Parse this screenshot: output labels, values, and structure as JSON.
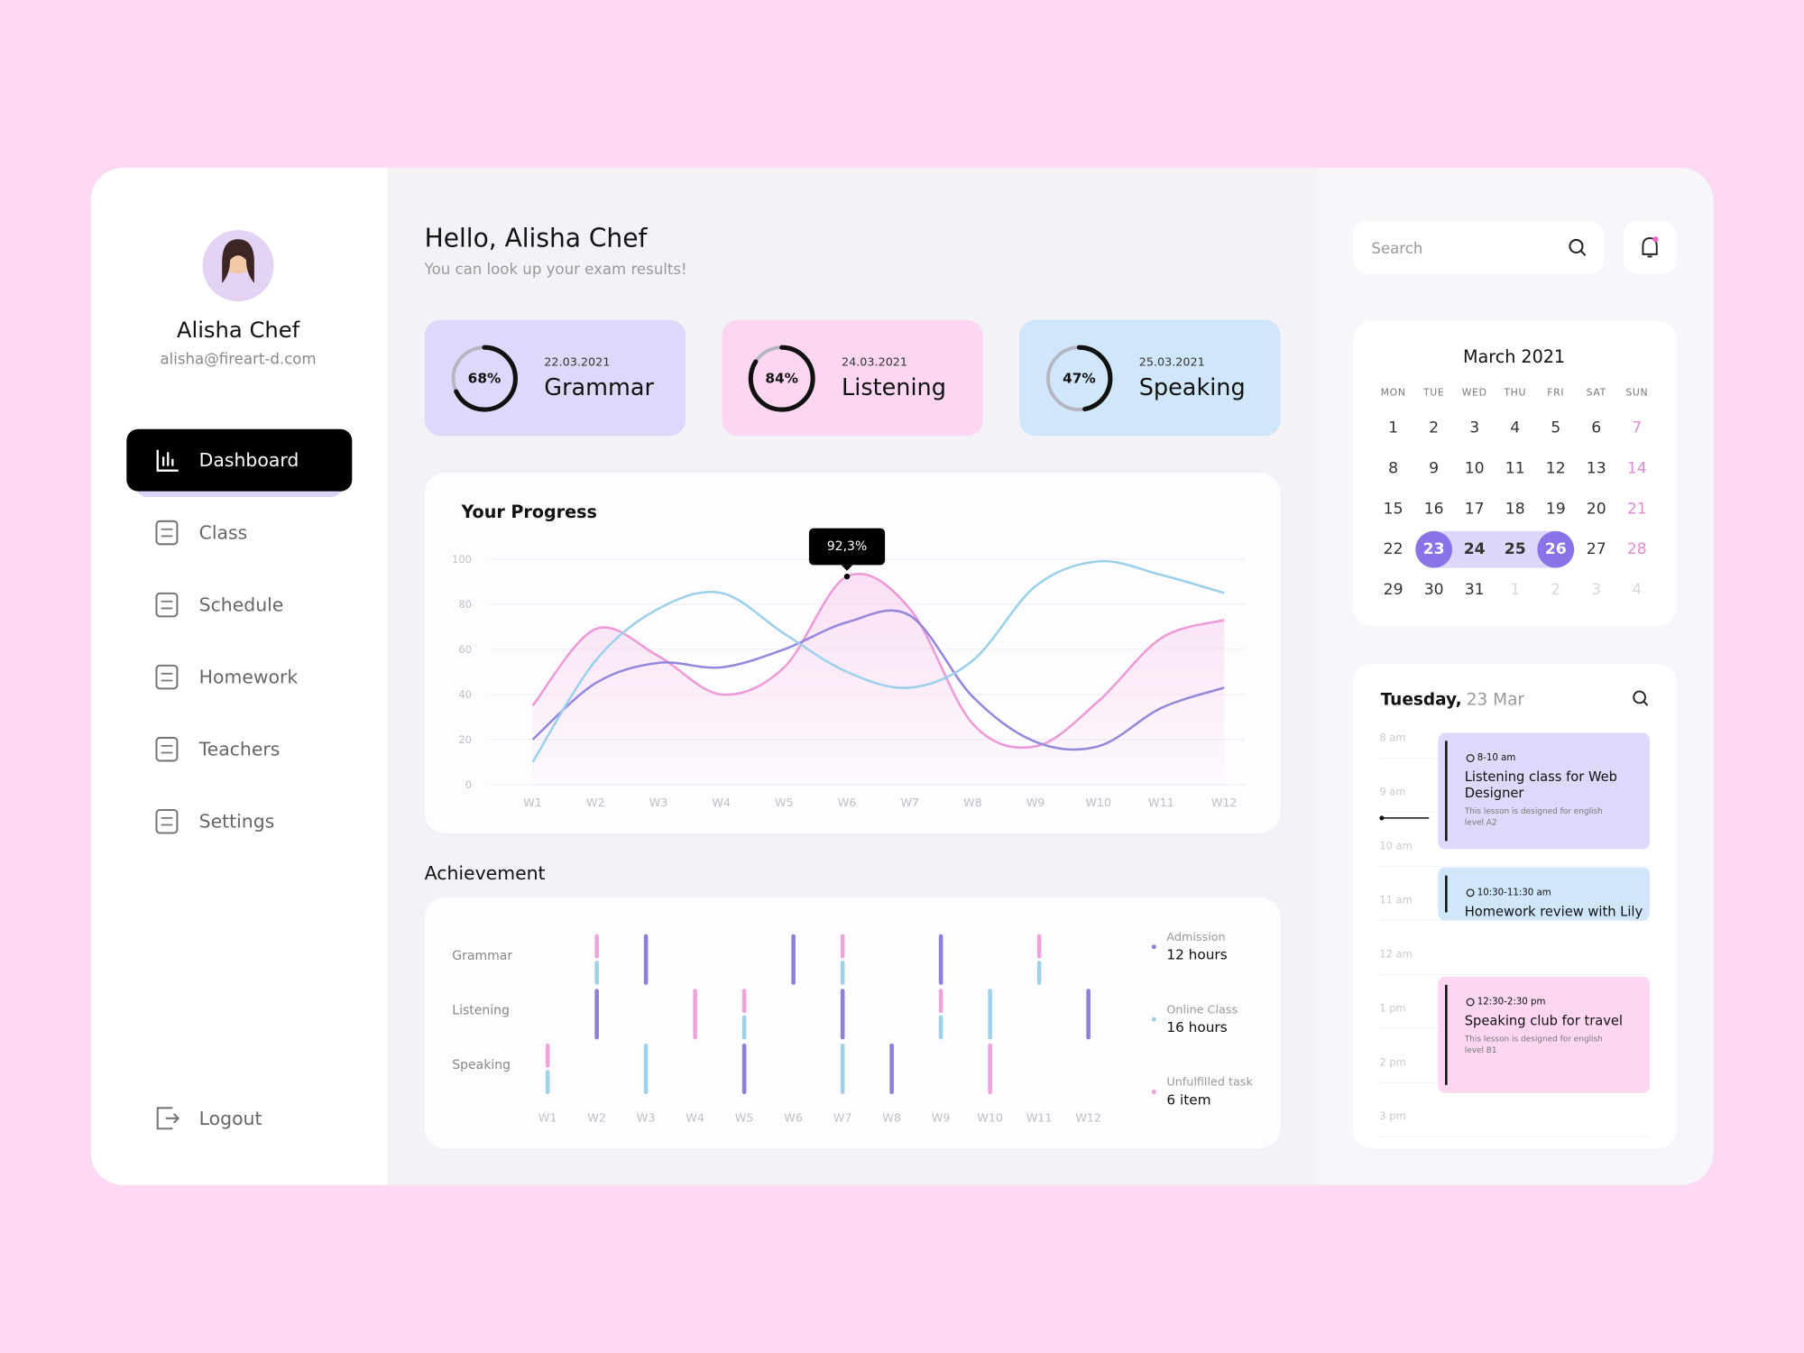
{
  "sidebar": {
    "name": "Alisha Chef",
    "email": "alisha@fireart-d.com",
    "nav": [
      "Dashboard",
      "Class",
      "Schedule",
      "Homework",
      "Teachers",
      "Settings"
    ],
    "logout": "Logout"
  },
  "header": {
    "title": "Hello, Alisha Chef",
    "subtitle": "You can look up your exam results!"
  },
  "exam_cards": [
    {
      "date": "22.03.2021",
      "title": "Grammar",
      "value": 68,
      "value_label": "68%",
      "color": "#dcd9fb"
    },
    {
      "date": "24.03.2021",
      "title": "Listening",
      "value": 84,
      "value_label": "84%",
      "color": "#fdd6f1"
    },
    {
      "date": "25.03.2021",
      "title": "Speaking",
      "value": 47,
      "value_label": "47%",
      "color": "#cfe6fb"
    }
  ],
  "chart_data": [
    {
      "type": "line",
      "title": "Your Progress",
      "categories": [
        "W1",
        "W2",
        "W3",
        "W4",
        "W5",
        "W6",
        "W7",
        "W8",
        "W9",
        "W10",
        "W11",
        "W12"
      ],
      "ylim": [
        0,
        100
      ],
      "yticks": [
        0,
        20,
        40,
        60,
        80,
        100
      ],
      "grid": true,
      "series": [
        {
          "color": "#ec9ad8",
          "values": [
            35,
            69,
            57,
            40,
            52,
            92.3,
            78,
            27,
            17,
            37,
            65,
            73
          ],
          "value_labels": [
            null,
            null,
            null,
            null,
            null,
            "92,3%",
            null,
            null,
            null,
            null,
            null,
            null
          ]
        },
        {
          "color": "#9488dc",
          "values": [
            20,
            45,
            54,
            52,
            60,
            72,
            75,
            39,
            19,
            17,
            34,
            43
          ]
        },
        {
          "color": "#9cd0ec",
          "values": [
            10,
            55,
            78,
            85,
            67,
            50,
            43,
            55,
            88,
            99,
            93,
            85
          ]
        }
      ]
    },
    {
      "type": "strip",
      "title": "Achievement",
      "categories": [
        "W1",
        "W2",
        "W3",
        "W4",
        "W5",
        "W6",
        "W7",
        "W8",
        "W9",
        "W10",
        "W11",
        "W12"
      ],
      "rows": [
        "Grammar",
        "Listening",
        "Speaking"
      ],
      "series": [
        {
          "name": "Admission",
          "value_label": "12 hours",
          "color": "#8d80d9",
          "values": [
            [
              null,
              null,
              1,
              null,
              null,
              1,
              null,
              null,
              1,
              null,
              null,
              null
            ],
            [
              null,
              1,
              null,
              null,
              null,
              null,
              1,
              null,
              null,
              null,
              null,
              1
            ],
            [
              null,
              null,
              null,
              null,
              1,
              null,
              null,
              1,
              null,
              null,
              null,
              null
            ]
          ]
        },
        {
          "name": "Online Class",
          "value_label": "16 hours",
          "color": "#9fd2ea",
          "values": [
            [
              null,
              0.5,
              null,
              null,
              null,
              null,
              0.5,
              null,
              null,
              null,
              0.5,
              null
            ],
            [
              null,
              null,
              null,
              null,
              0.5,
              null,
              null,
              null,
              0.5,
              1,
              null,
              null
            ],
            [
              0.5,
              null,
              1,
              null,
              null,
              null,
              1,
              null,
              null,
              null,
              null,
              null
            ]
          ]
        },
        {
          "name": "Unfulfilled task",
          "value_label": "6 item",
          "color": "#f0a2dc",
          "values": [
            [
              null,
              0.5,
              null,
              null,
              null,
              null,
              0.5,
              null,
              null,
              null,
              0.5,
              null
            ],
            [
              null,
              null,
              null,
              1,
              0.5,
              null,
              null,
              null,
              0.5,
              null,
              null,
              null
            ],
            [
              0.5,
              null,
              null,
              null,
              null,
              null,
              null,
              null,
              null,
              1,
              null,
              null
            ]
          ]
        }
      ]
    }
  ],
  "search": {
    "placeholder": "Search"
  },
  "calendar": {
    "title": "March 2021",
    "weekdays": [
      "MON",
      "TUE",
      "WED",
      "THU",
      "FRI",
      "SAT",
      "SUN"
    ],
    "weeks": [
      [
        1,
        2,
        3,
        4,
        5,
        6,
        7
      ],
      [
        8,
        9,
        10,
        11,
        12,
        13,
        14
      ],
      [
        15,
        16,
        17,
        18,
        19,
        20,
        21
      ],
      [
        22,
        23,
        24,
        25,
        26,
        27,
        28
      ],
      [
        29,
        30,
        31,
        1,
        2,
        3,
        4
      ]
    ]
  },
  "schedule": {
    "day": "Tuesday,",
    "date": "23 Mar",
    "hours": [
      "8 am",
      "9 am",
      "10 am",
      "11 am",
      "12 am",
      "1 pm",
      "2 pm",
      "3 pm"
    ],
    "events": [
      {
        "time": "8-10 am",
        "title": "Listening class for Web Designer",
        "description": "This lesson is designed for english level A2",
        "color": "#dcd9fb"
      },
      {
        "time": "10:30-11:30 am",
        "title": "Homework review with Lily",
        "color": "#cfe6fb"
      },
      {
        "time": "12:30-2:30 pm",
        "title": "Speaking club for travel",
        "description": "This lesson is designed for english level B1",
        "color": "#fdd6f1"
      }
    ]
  }
}
